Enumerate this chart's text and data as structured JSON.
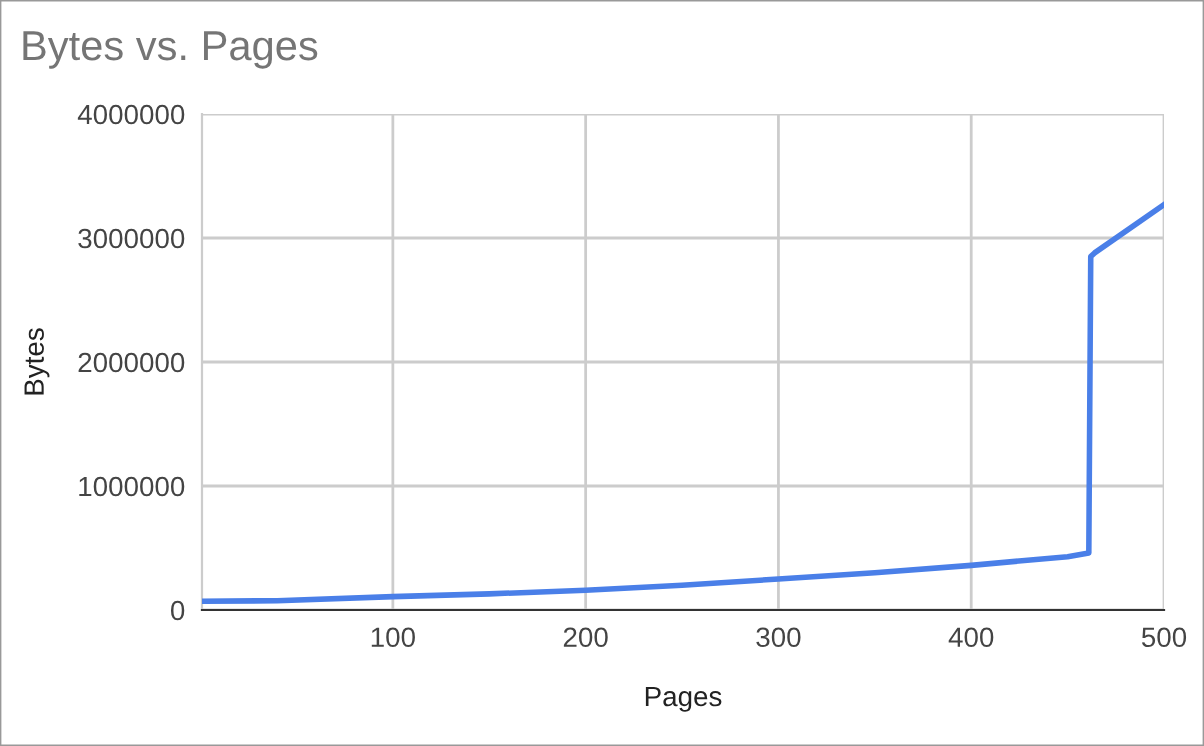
{
  "chart_data": {
    "type": "line",
    "title": "Bytes vs. Pages",
    "xlabel": "Pages",
    "ylabel": "Bytes",
    "x": [
      1,
      40,
      100,
      150,
      200,
      250,
      300,
      350,
      400,
      450,
      461,
      462,
      464,
      500
    ],
    "series": [
      {
        "color": "#4a7fe8",
        "values": [
          70000,
          75000,
          108000,
          130000,
          160000,
          200000,
          250000,
          300000,
          360000,
          430000,
          460000,
          2850000,
          2880000,
          3270000
        ]
      }
    ],
    "xlim": [
      1,
      500
    ],
    "xticks": [
      100,
      200,
      300,
      400,
      500
    ],
    "ylim": [
      0,
      4000000
    ],
    "yticks": [
      0,
      1000000,
      2000000,
      3000000,
      4000000
    ],
    "grid": true,
    "legend": false,
    "marker": "none",
    "line_style": "solid"
  }
}
